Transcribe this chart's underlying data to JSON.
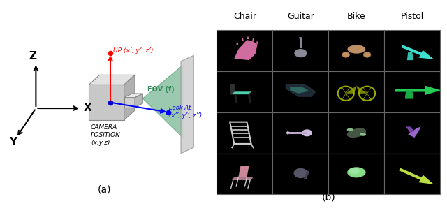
{
  "fig_width": 6.4,
  "fig_height": 3.05,
  "panel_a_label": "(a)",
  "panel_b_label": "(b)",
  "col_labels": [
    "Chair",
    "Guitar",
    "Bike",
    "Pistol"
  ],
  "up_text": "UP (x’, y’, z’)",
  "fov_text": "FOV (f)",
  "look_at_text": "Look At\n(x’’, y’’, z’’)",
  "camera_text_line1": "CAMERA",
  "camera_text_line2": "POSITION",
  "camera_text_line3": "(x,y,z)",
  "z_label": "Z",
  "x_label": "X",
  "y_label": "Y",
  "grid_rows": 4,
  "grid_cols": 4,
  "cell_border_color": "#666666",
  "cell_bg_color": "#000000",
  "header_fontsize": 9,
  "label_fontsize": 10
}
